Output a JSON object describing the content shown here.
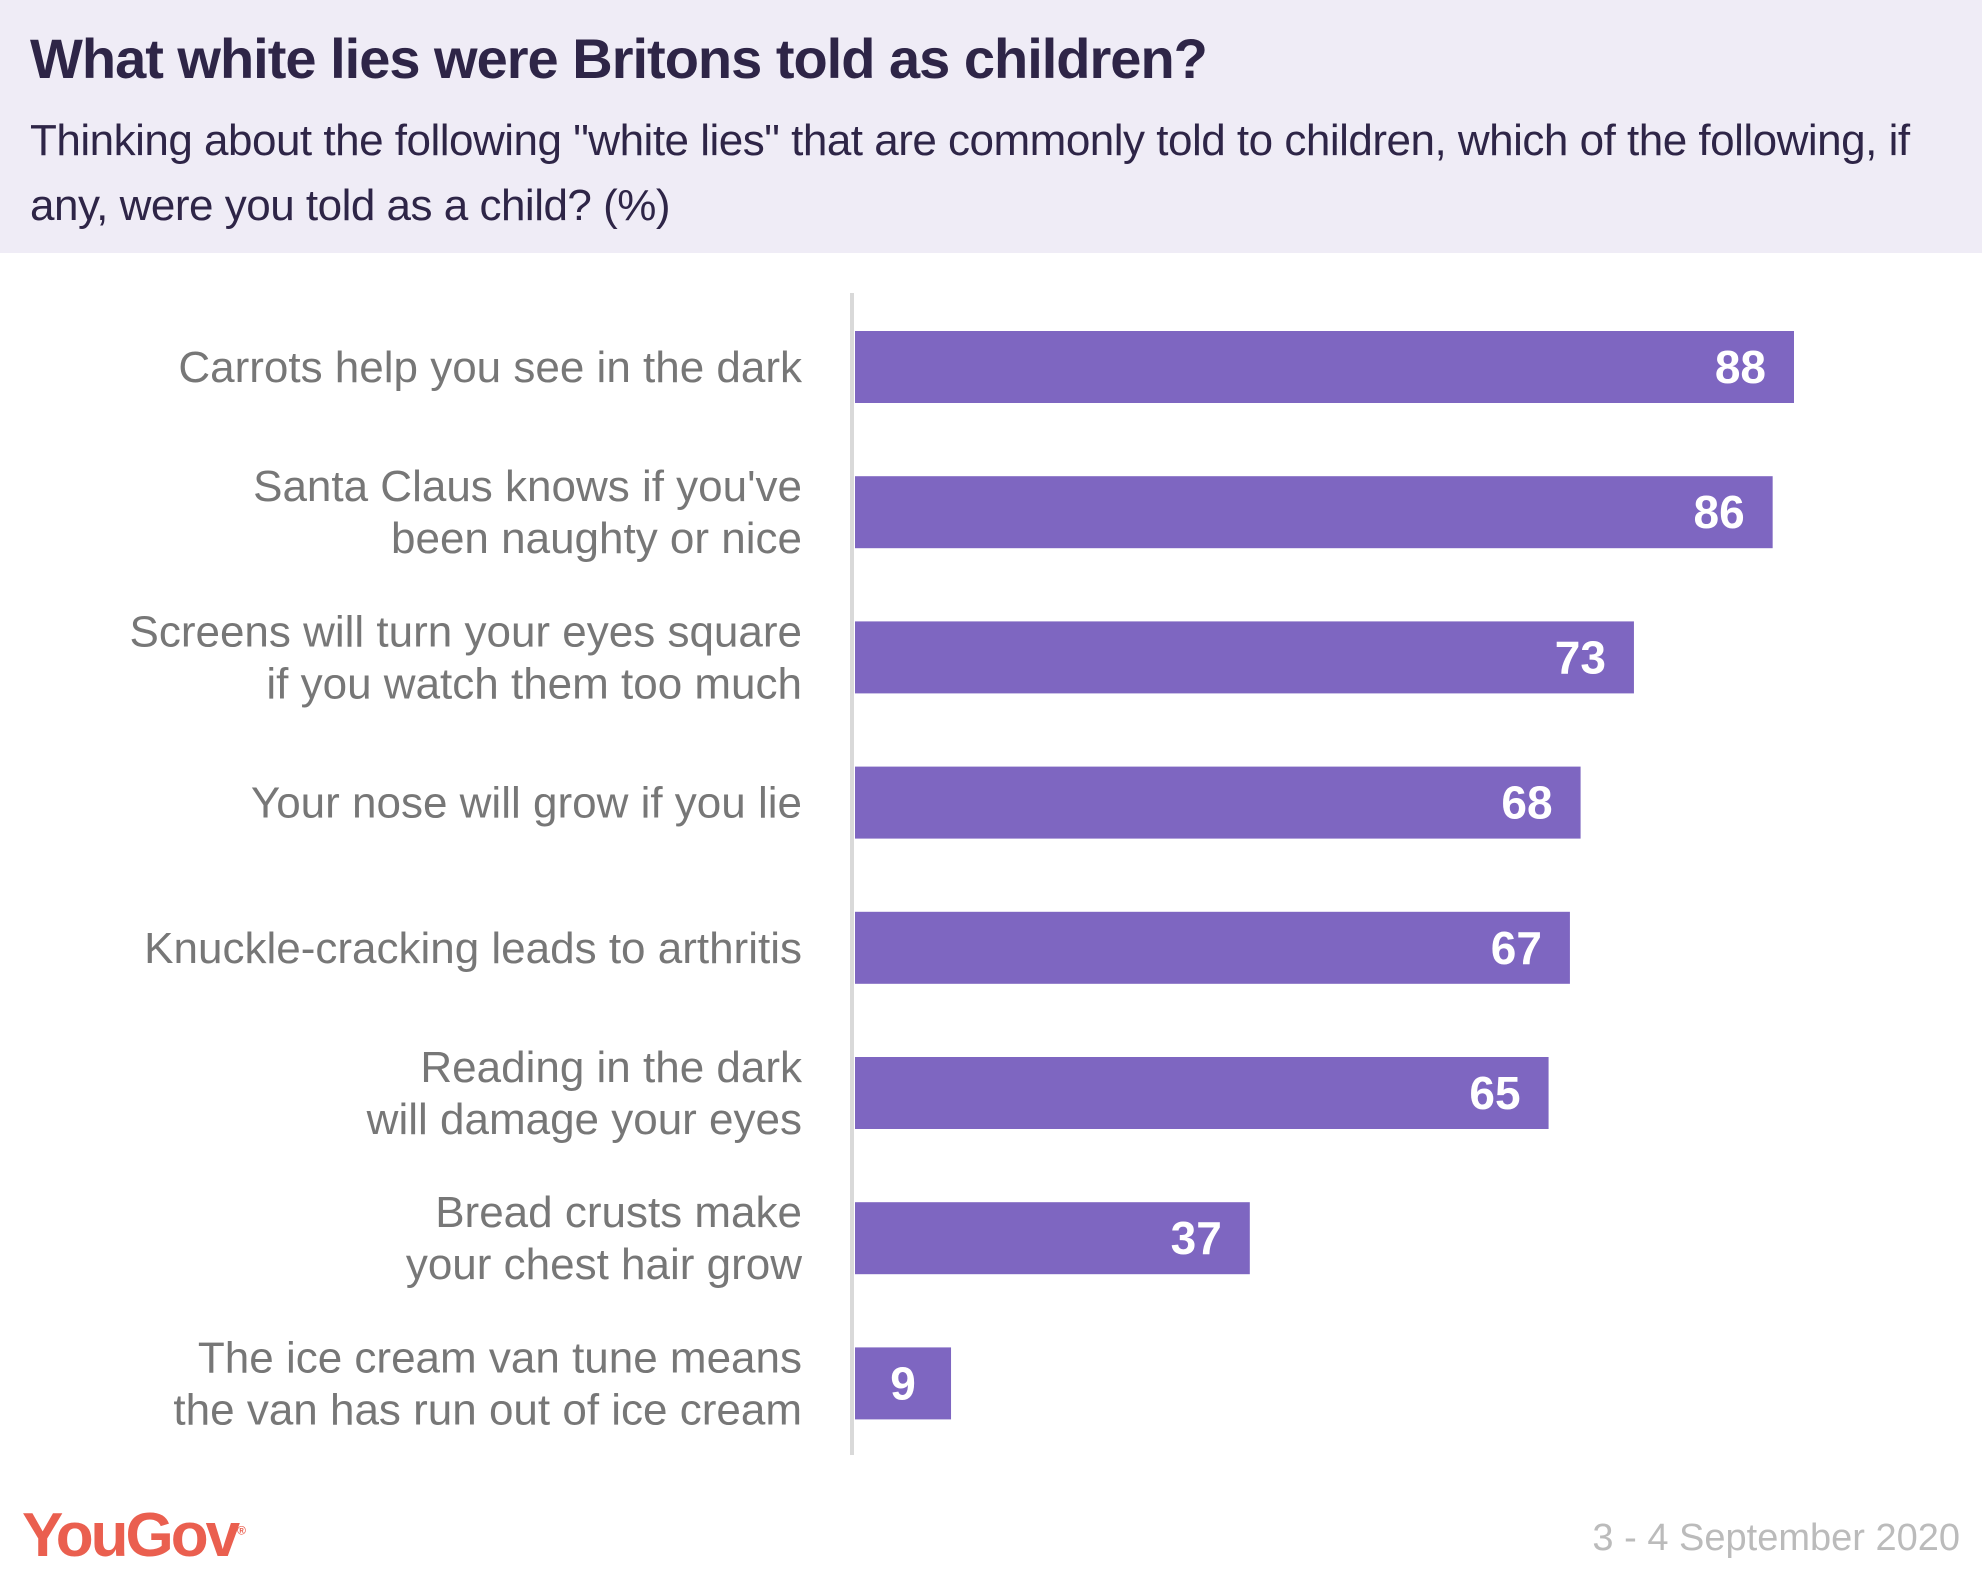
{
  "header": {
    "title": "What white lies were Britons told as children?",
    "subtitle": "Thinking about the following \"white lies\" that are commonly told to children, which of the following, if any, were you told as a child? (%)"
  },
  "chart_data": {
    "type": "bar",
    "orientation": "horizontal",
    "categories": [
      [
        "Carrots help you see in the dark"
      ],
      [
        "Santa Claus knows if you've",
        "been naughty or nice"
      ],
      [
        "Screens will turn your eyes square",
        "if you watch them too much"
      ],
      [
        "Your nose will grow if you lie"
      ],
      [
        "Knuckle-cracking leads to arthritis"
      ],
      [
        "Reading in the dark",
        "will damage your eyes"
      ],
      [
        "Bread crusts make",
        "your chest hair grow"
      ],
      [
        "The ice cream van tune means",
        "the van has run out of ice cream"
      ]
    ],
    "values": [
      88,
      86,
      73,
      68,
      67,
      65,
      37,
      9
    ],
    "xlim": [
      0,
      100
    ],
    "data_labels": true,
    "grid": false,
    "bar_color": "#7e66c1",
    "axis_color": "#d9d9d9"
  },
  "footer": {
    "logo": "YouGov",
    "date": "3 - 4 September 2020",
    "logo_color": "#ea5f4f"
  }
}
